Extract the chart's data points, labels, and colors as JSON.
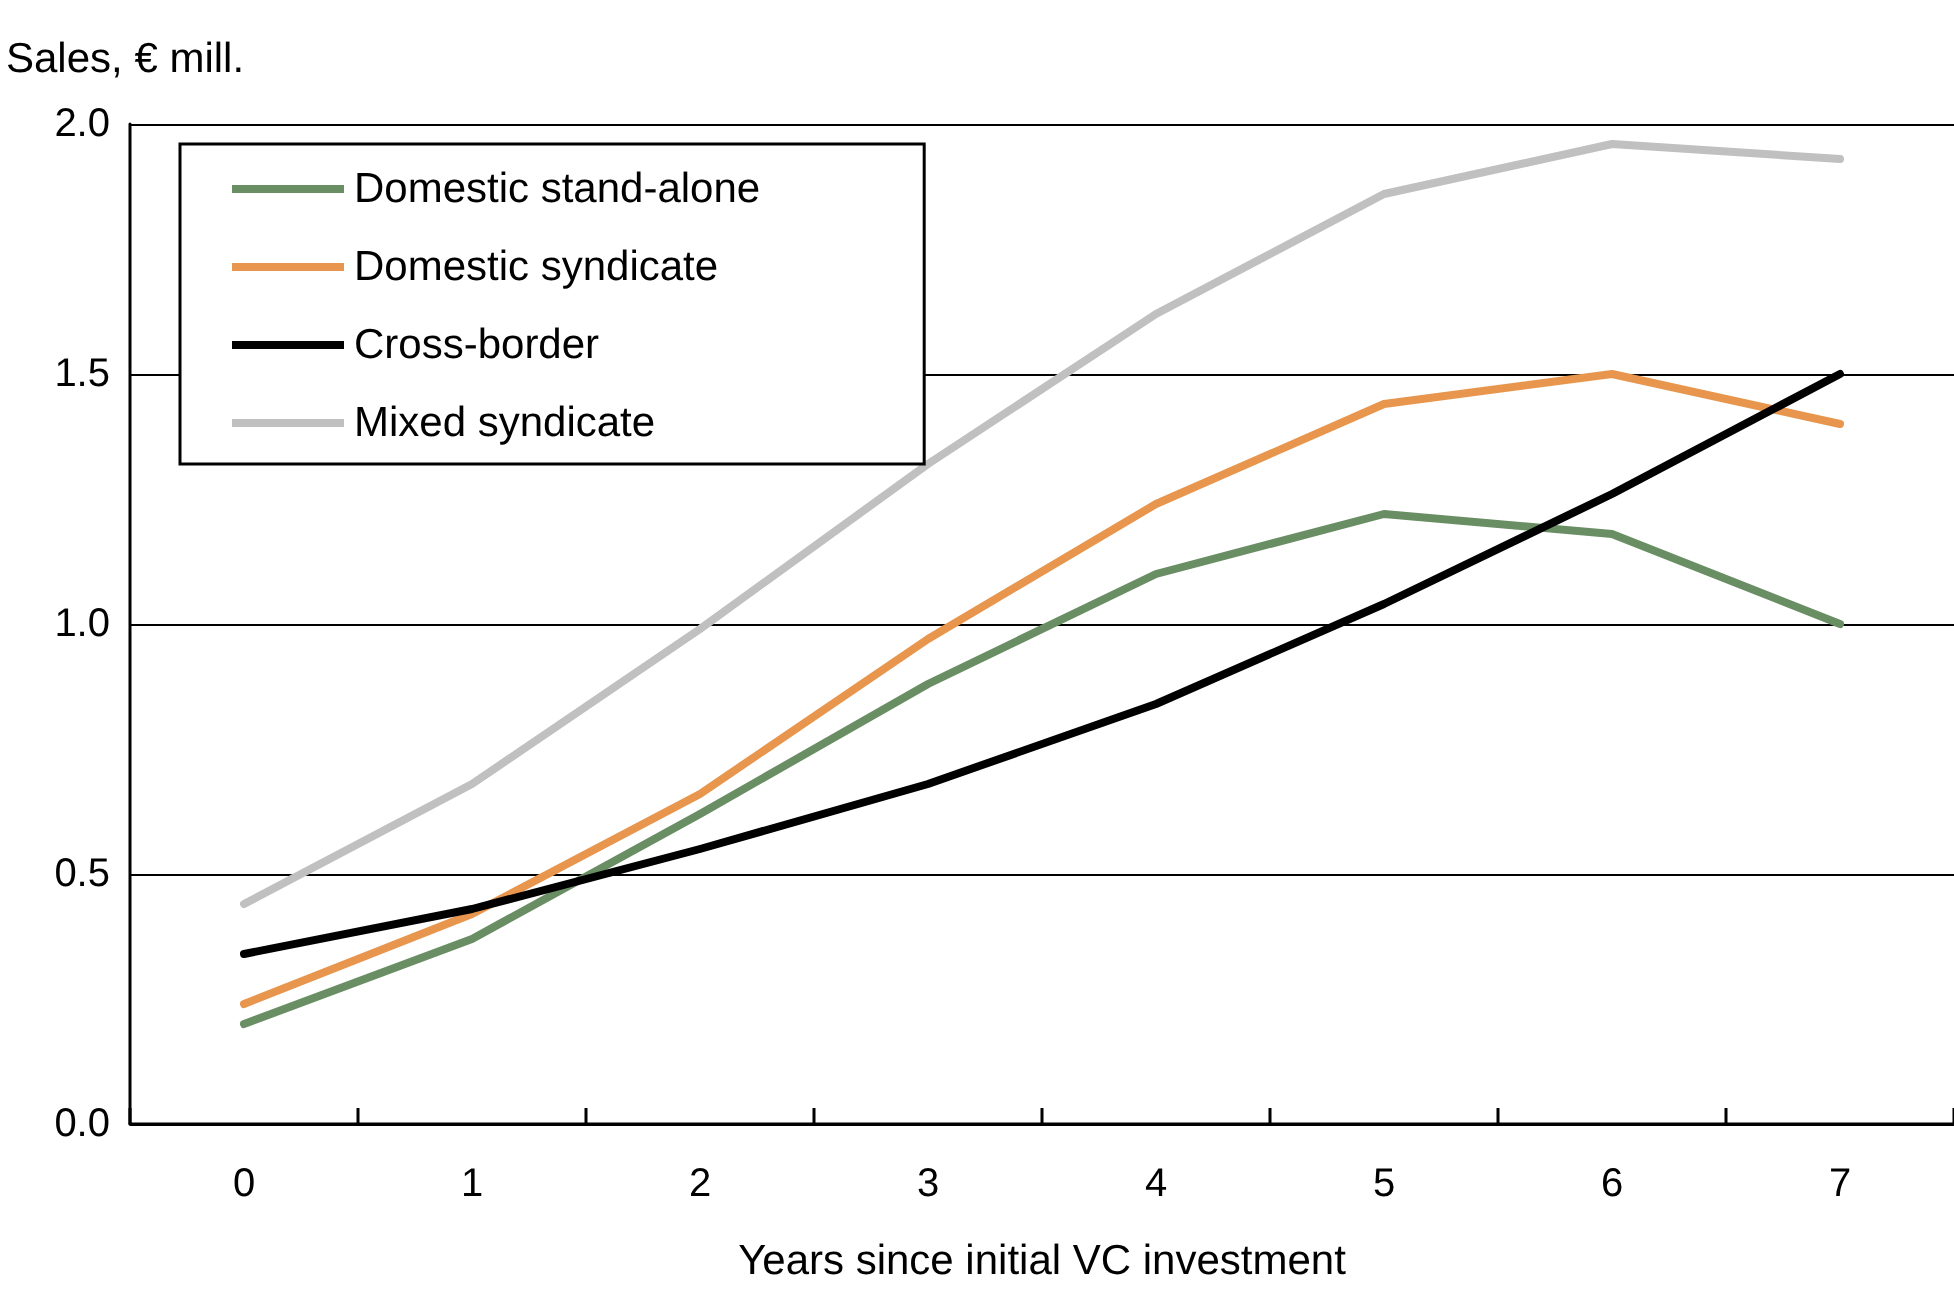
{
  "chart_data": {
    "type": "line",
    "ylabel": "Sales, € mill.",
    "xlabel": "Years since initial VC investment",
    "categories": [
      "0",
      "1",
      "2",
      "3",
      "4",
      "5",
      "6",
      "7"
    ],
    "series": [
      {
        "name": "Domestic stand-alone",
        "color": "#6a8e64",
        "values": [
          0.2,
          0.37,
          0.62,
          0.88,
          1.1,
          1.22,
          1.18,
          1.0
        ]
      },
      {
        "name": "Domestic syndicate",
        "color": "#e8964e",
        "values": [
          0.24,
          0.42,
          0.66,
          0.97,
          1.24,
          1.44,
          1.5,
          1.4
        ]
      },
      {
        "name": "Cross-border",
        "color": "#000000",
        "values": [
          0.34,
          0.43,
          0.55,
          0.68,
          0.84,
          1.04,
          1.26,
          1.5
        ]
      },
      {
        "name": "Mixed syndicate",
        "color": "#c0c0c0",
        "values": [
          0.44,
          0.68,
          0.99,
          1.32,
          1.62,
          1.86,
          1.96,
          1.93
        ]
      }
    ],
    "ylim": [
      0,
      2
    ],
    "yticks": [
      {
        "value": 0,
        "label": "0.0"
      },
      {
        "value": 0.5,
        "label": "0.5"
      },
      {
        "value": 1,
        "label": "1.0"
      },
      {
        "value": 1.5,
        "label": "1.5"
      },
      {
        "value": 2,
        "label": "2.0"
      }
    ],
    "grid": "y",
    "legend": "top left",
    "marker": "none",
    "line_style": "solid"
  }
}
